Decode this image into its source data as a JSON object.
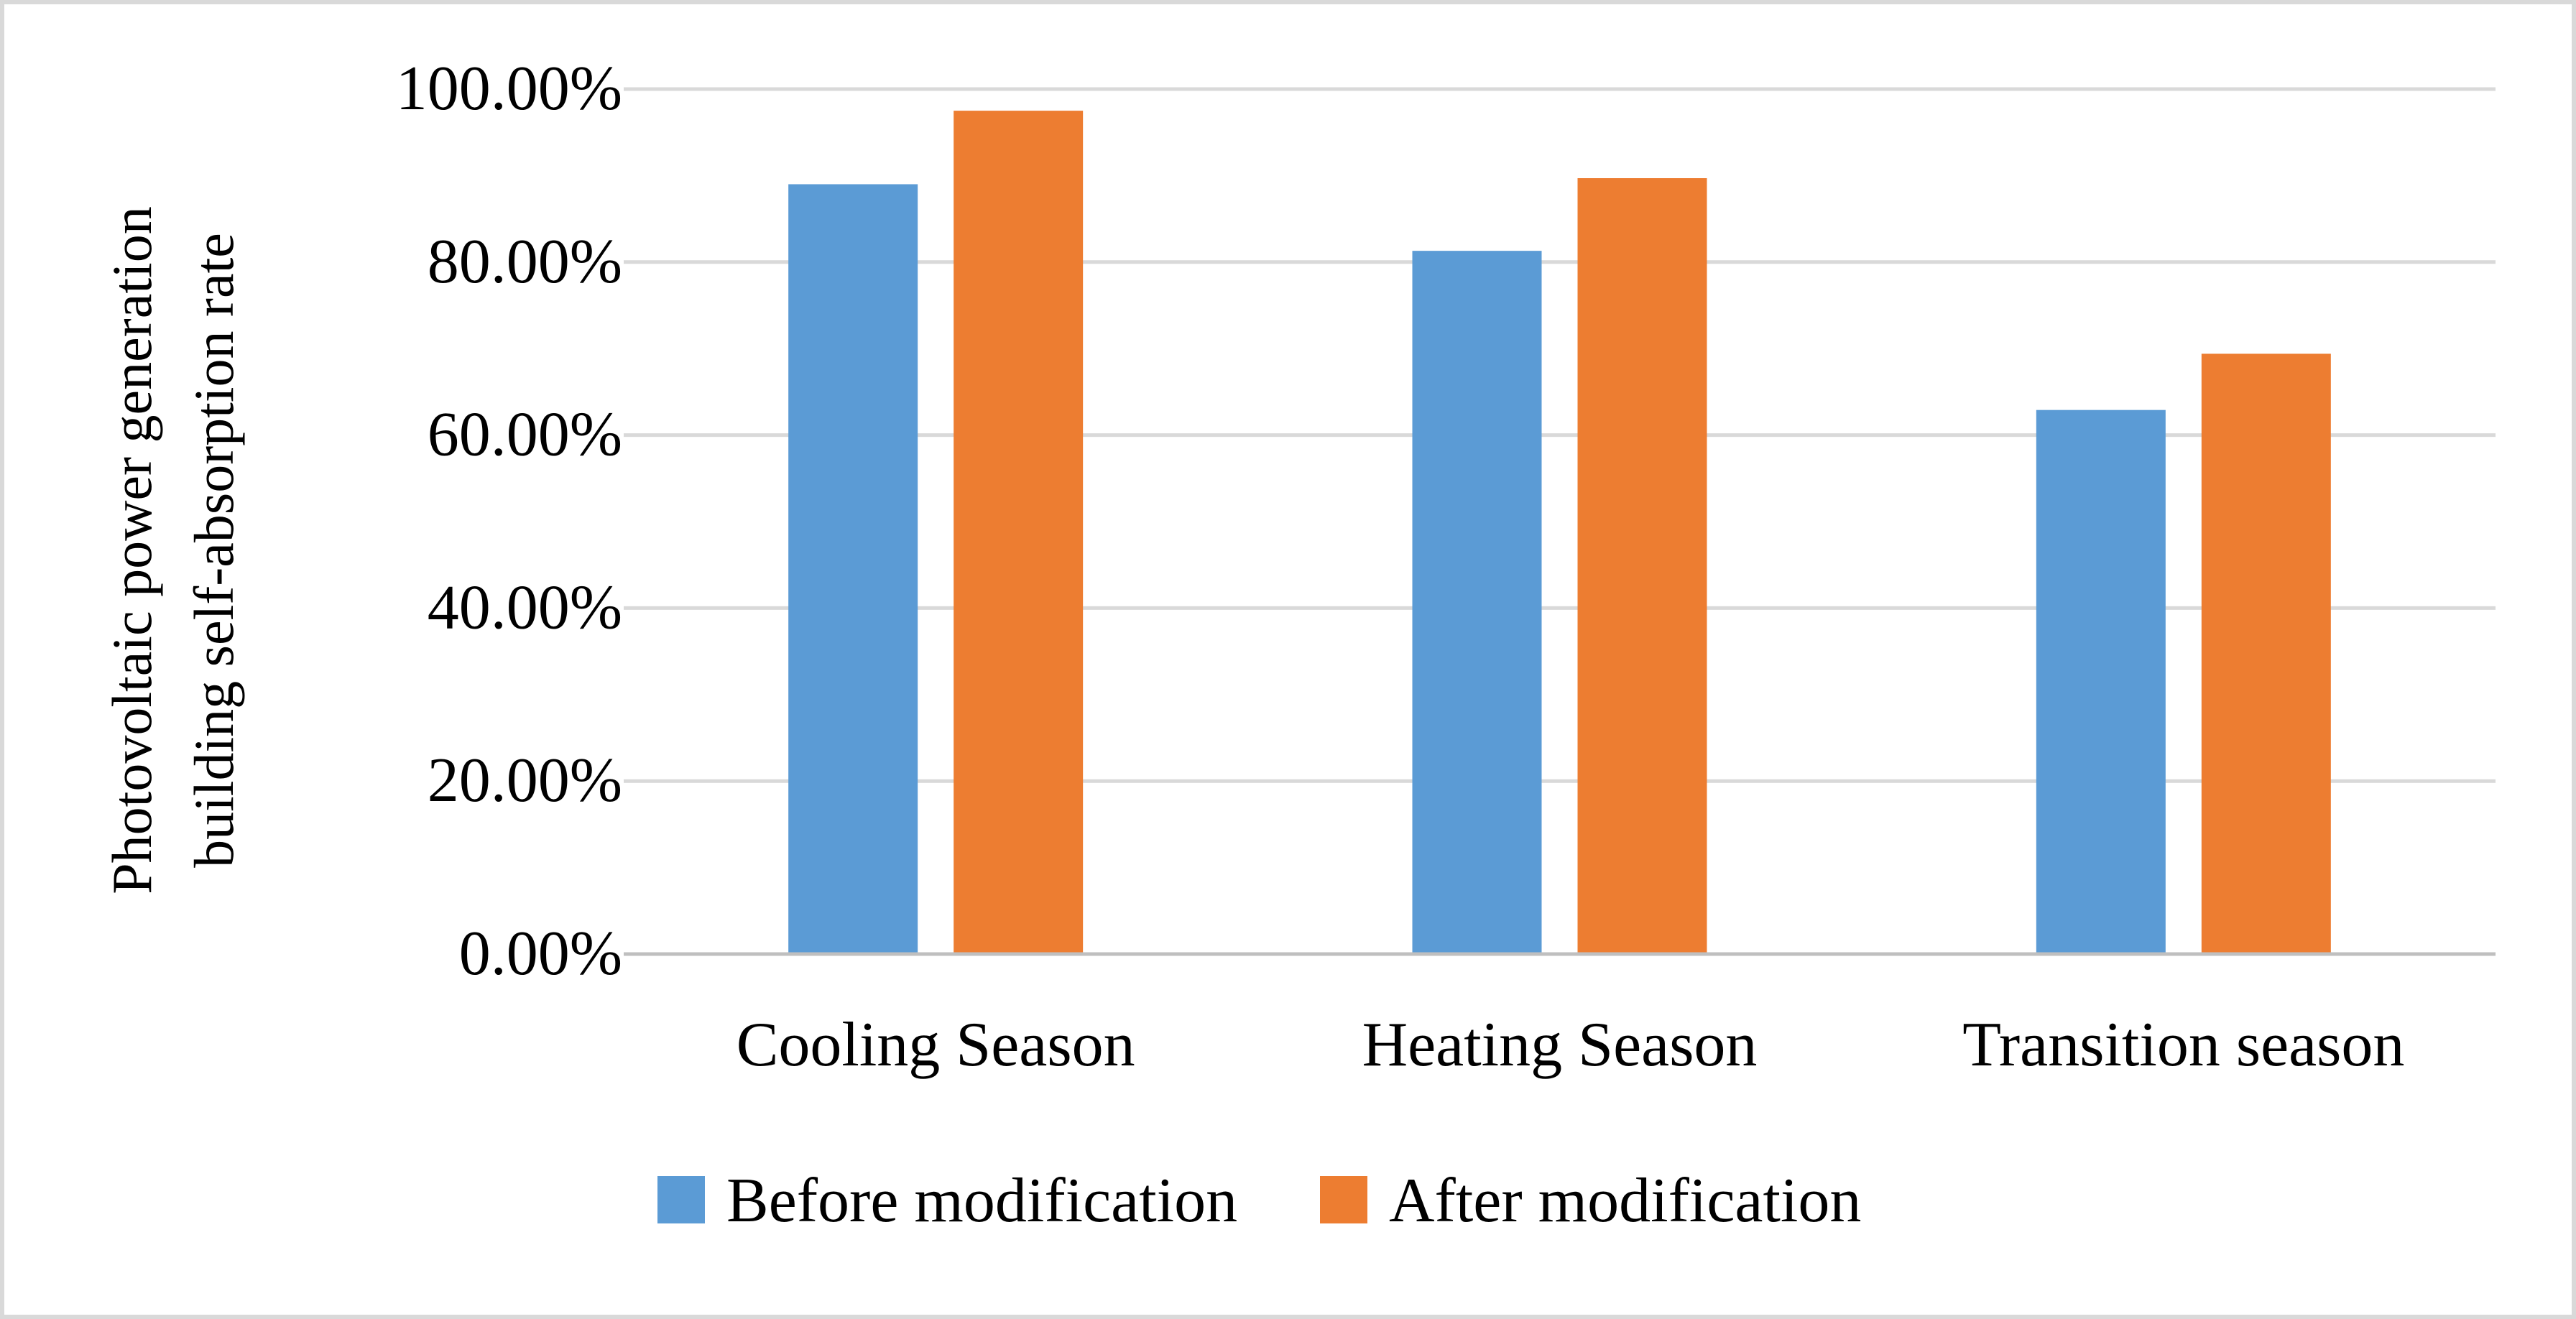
{
  "chart_data": {
    "type": "bar",
    "title": "",
    "xlabel": "",
    "ylabel_lines": [
      "Photovoltaic power generation",
      "building self-absorption rate"
    ],
    "ylim": [
      0,
      1.0
    ],
    "yticks": [
      0,
      0.2,
      0.4,
      0.6,
      0.8,
      1.0
    ],
    "ytick_labels": [
      "0.00%",
      "20.00%",
      "40.00%",
      "60.00%",
      "80.00%",
      "100.00%"
    ],
    "grid": true,
    "legend_position": "bottom",
    "categories": [
      "Cooling Season",
      "Heating Season",
      "Transition season"
    ],
    "series": [
      {
        "name": "Before modification",
        "color": "#5B9BD5",
        "values": [
          0.89,
          0.813,
          0.629
        ]
      },
      {
        "name": "After modification",
        "color": "#ED7D31",
        "values": [
          0.975,
          0.897,
          0.694
        ]
      }
    ]
  }
}
